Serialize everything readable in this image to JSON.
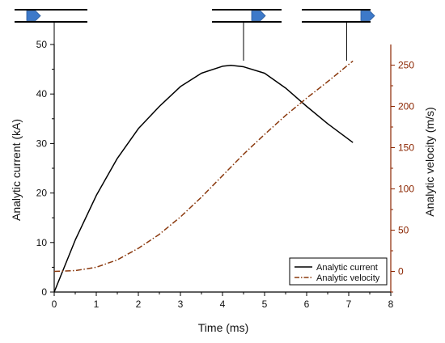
{
  "colors": {
    "axis_left": "#000000",
    "axis_right": "#8b2500",
    "current_line": "#000000",
    "velocity_line": "#8b3a0f",
    "projectile": "#3d79c9",
    "rail": "#000000"
  },
  "chart_data": {
    "type": "line",
    "xlabel": "Time (ms)",
    "ylabel": "Analytic current (kA)",
    "y2label": "Analytic velocity (m/s)",
    "xlim": [
      0,
      8
    ],
    "ylim": [
      0,
      50
    ],
    "y2lim": [
      -25,
      275
    ],
    "xticks": [
      0,
      1,
      2,
      3,
      4,
      5,
      6,
      7,
      8
    ],
    "yticks": [
      0,
      10,
      20,
      30,
      40,
      50
    ],
    "y2ticks": [
      0,
      50,
      100,
      150,
      200,
      250
    ],
    "legend_position": "bottom-right",
    "grid": false,
    "series": [
      {
        "name": "Analytic current",
        "axis": "left",
        "style": "solid",
        "x": [
          0,
          0.5,
          1,
          1.5,
          2,
          2.5,
          3,
          3.5,
          4,
          4.2,
          4.5,
          5,
          5.5,
          6,
          6.5,
          7.1
        ],
        "y": [
          0,
          10.5,
          19.5,
          27,
          33,
          37.5,
          41.5,
          44.2,
          45.6,
          45.8,
          45.5,
          44.2,
          41.2,
          37.5,
          34,
          30.2
        ]
      },
      {
        "name": "Analytic velocity",
        "axis": "right",
        "style": "dashdot",
        "x": [
          0,
          0.5,
          1,
          1.5,
          2,
          2.5,
          3,
          3.5,
          4,
          4.5,
          5,
          5.5,
          6,
          6.5,
          7.1
        ],
        "y": [
          0,
          1,
          5,
          14,
          28,
          45,
          66,
          90,
          116,
          142,
          166,
          189,
          210,
          230,
          255
        ]
      }
    ],
    "markers": [
      {
        "x": 0
      },
      {
        "x": 4.5
      },
      {
        "x": 6.95
      }
    ]
  }
}
